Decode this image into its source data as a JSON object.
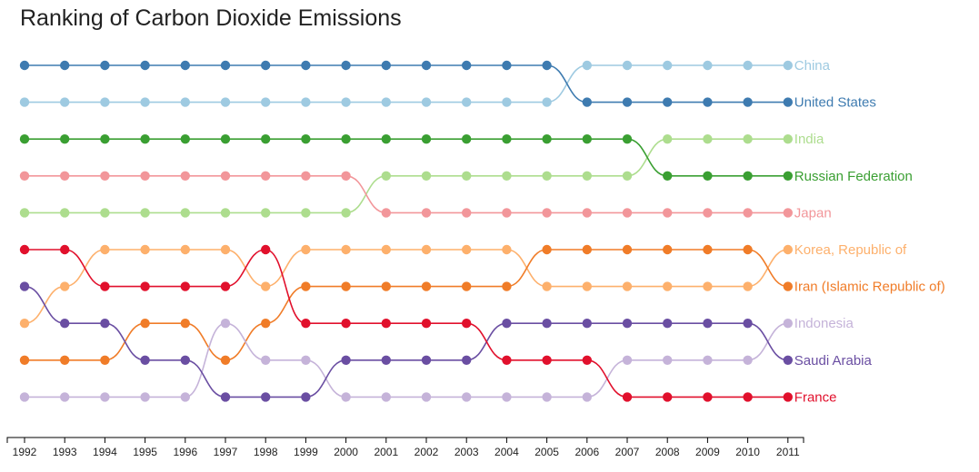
{
  "title": "Ranking of Carbon Dioxide Emissions",
  "chart_data": {
    "type": "bump",
    "x": [
      1992,
      1993,
      1994,
      1995,
      1996,
      1997,
      1998,
      1999,
      2000,
      2001,
      2002,
      2003,
      2004,
      2005,
      2006,
      2007,
      2008,
      2009,
      2010,
      2011
    ],
    "y_meaning": "rank (1 = highest emissions)",
    "series": [
      {
        "name": "China",
        "color": "#9ecae1",
        "ranks": [
          2,
          2,
          2,
          2,
          2,
          2,
          2,
          2,
          2,
          2,
          2,
          2,
          2,
          2,
          1,
          1,
          1,
          1,
          1,
          1
        ]
      },
      {
        "name": "United States",
        "color": "#3e7bb0",
        "ranks": [
          1,
          1,
          1,
          1,
          1,
          1,
          1,
          1,
          1,
          1,
          1,
          1,
          1,
          1,
          2,
          2,
          2,
          2,
          2,
          2
        ]
      },
      {
        "name": "India",
        "color": "#addd8e",
        "ranks": [
          5,
          5,
          5,
          5,
          5,
          5,
          5,
          5,
          5,
          4,
          4,
          4,
          4,
          4,
          4,
          4,
          3,
          3,
          3,
          3
        ]
      },
      {
        "name": "Russian Federation",
        "color": "#3a9f32",
        "ranks": [
          3,
          3,
          3,
          3,
          3,
          3,
          3,
          3,
          3,
          3,
          3,
          3,
          3,
          3,
          3,
          3,
          4,
          4,
          4,
          4
        ]
      },
      {
        "name": "Japan",
        "color": "#f2969a",
        "ranks": [
          4,
          4,
          4,
          4,
          4,
          4,
          4,
          4,
          4,
          5,
          5,
          5,
          5,
          5,
          5,
          5,
          5,
          5,
          5,
          5
        ]
      },
      {
        "name": "Korea, Republic of",
        "color": "#fdb06c",
        "ranks": [
          8,
          7,
          6,
          6,
          6,
          6,
          7,
          6,
          6,
          6,
          6,
          6,
          6,
          7,
          7,
          7,
          7,
          7,
          7,
          6
        ]
      },
      {
        "name": "Iran (Islamic Republic of)",
        "color": "#f07c28",
        "ranks": [
          9,
          9,
          9,
          8,
          8,
          9,
          8,
          7,
          7,
          7,
          7,
          7,
          7,
          6,
          6,
          6,
          6,
          6,
          6,
          7
        ]
      },
      {
        "name": "Indonesia",
        "color": "#c5b3d9",
        "ranks": [
          10,
          10,
          10,
          10,
          10,
          8,
          9,
          9,
          10,
          10,
          10,
          10,
          10,
          10,
          10,
          9,
          9,
          9,
          9,
          8
        ]
      },
      {
        "name": "Saudi Arabia",
        "color": "#6a4ea2",
        "ranks": [
          7,
          8,
          8,
          9,
          9,
          10,
          10,
          10,
          9,
          9,
          9,
          9,
          8,
          8,
          8,
          8,
          8,
          8,
          8,
          9
        ]
      },
      {
        "name": "France",
        "color": "#e1102c",
        "ranks": [
          6,
          6,
          7,
          7,
          7,
          7,
          6,
          8,
          8,
          8,
          8,
          8,
          9,
          9,
          9,
          10,
          10,
          10,
          10,
          10
        ]
      }
    ],
    "xlabel": "",
    "ylabel": "",
    "legend": "labels at right end of lines",
    "grid": false
  }
}
